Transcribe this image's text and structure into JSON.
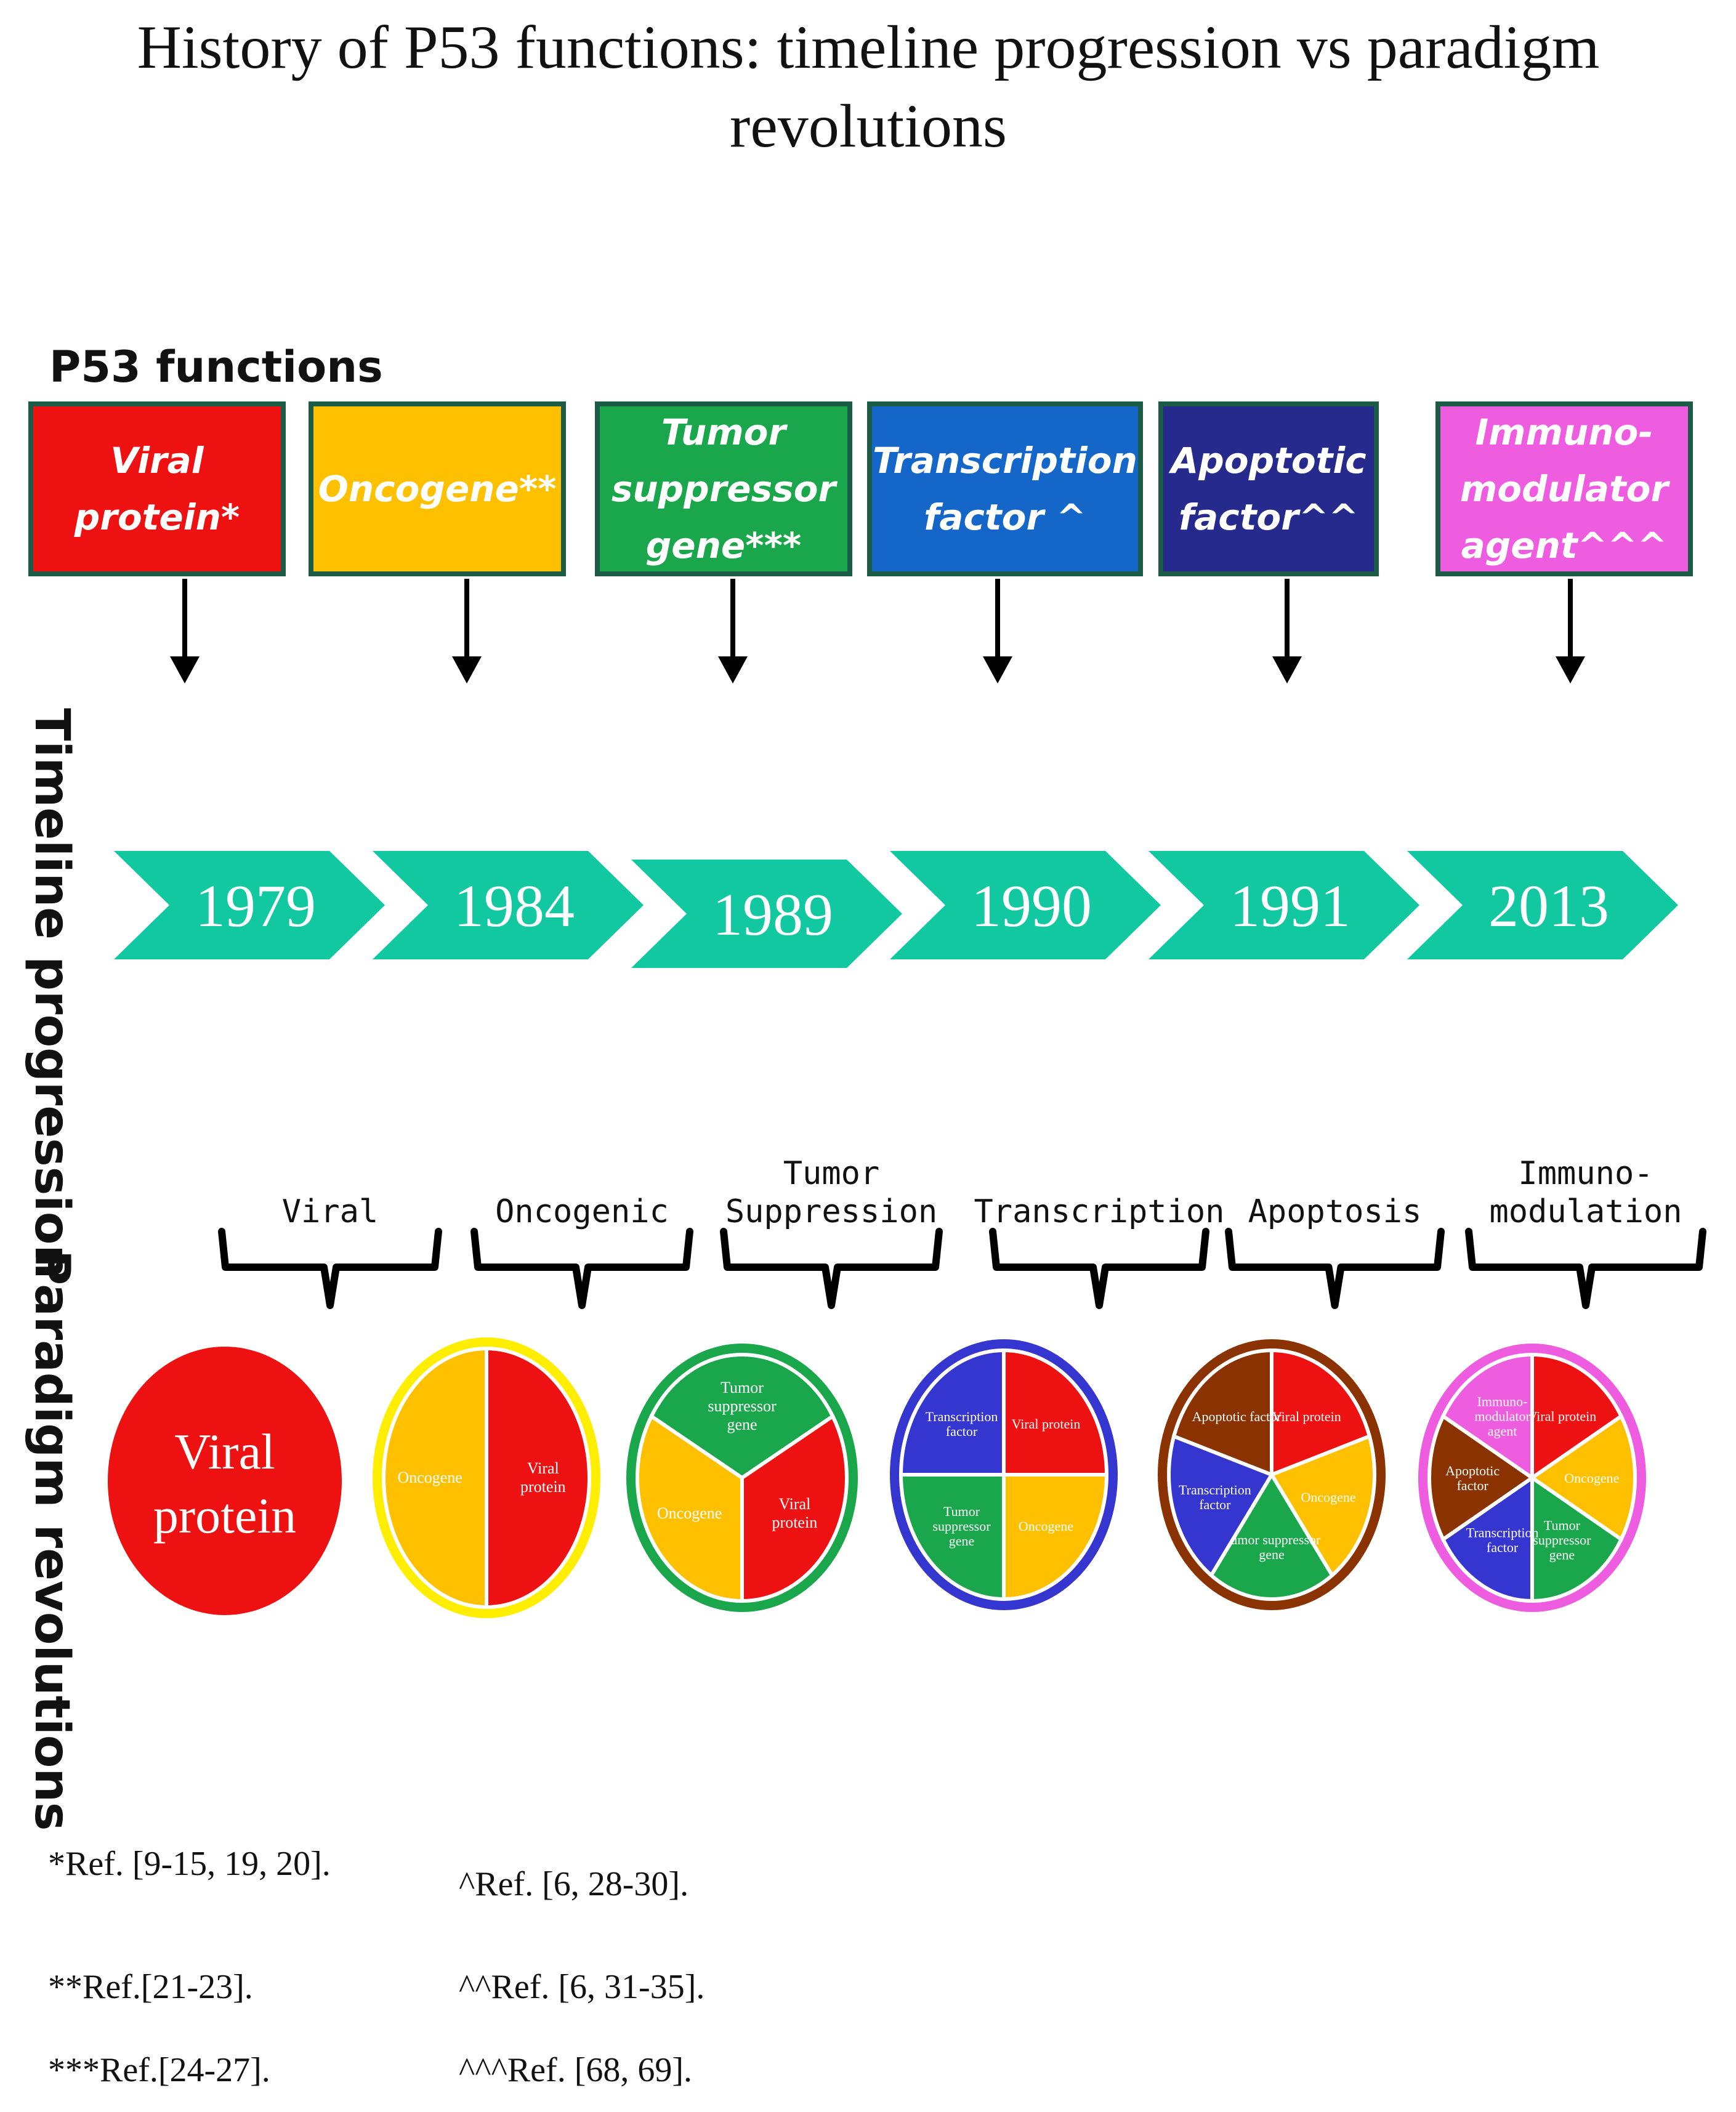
{
  "title": {
    "line1": "History of P53 functions: timeline progression vs paradigm",
    "line2": "revolutions"
  },
  "functions_label": "P53 functions",
  "functions": [
    {
      "lines": [
        "Viral",
        "protein*"
      ],
      "color": "#ee1111"
    },
    {
      "lines": [
        "Oncogene**"
      ],
      "color": "#ffc000"
    },
    {
      "lines": [
        "Tumor",
        "suppressor",
        "gene***"
      ],
      "color": "#1aa64a"
    },
    {
      "lines": [
        "Transcription",
        "factor ^"
      ],
      "color": "#1466c8"
    },
    {
      "lines": [
        "Apoptotic",
        "factor^^"
      ],
      "color": "#262a8c"
    },
    {
      "lines": [
        "Immuno-",
        "modulator",
        "agent^^^"
      ],
      "color": "#ee5ce0"
    }
  ],
  "timeline_label": "Timeline progression",
  "years": [
    "1979",
    "1984",
    "1989",
    "1990",
    "1991",
    "2013"
  ],
  "timeline_color": "#12c8a0",
  "paradigm_label": "Paradigm revolutions",
  "paradigms": [
    {
      "lines": [
        "Viral"
      ]
    },
    {
      "lines": [
        "Oncogenic"
      ]
    },
    {
      "lines": [
        "Tumor",
        "Suppression"
      ]
    },
    {
      "lines": [
        "Transcription"
      ]
    },
    {
      "lines": [
        "Apoptosis"
      ]
    },
    {
      "lines": [
        "Immuno-",
        "modulation"
      ]
    }
  ],
  "pies": [
    {
      "border": "#ee1111",
      "slices": [
        {
          "label": [
            "Viral",
            "protein"
          ],
          "color": "#ee1111",
          "value": 1
        }
      ]
    },
    {
      "border": "#ffee00",
      "slices": [
        {
          "label": [
            "Viral",
            "protein"
          ],
          "color": "#ee1111",
          "value": 1
        },
        {
          "label": [
            "Oncogene"
          ],
          "color": "#ffc000",
          "value": 1
        }
      ]
    },
    {
      "border": "#1aa64a",
      "slices": [
        {
          "label": [
            "Viral",
            "protein"
          ],
          "color": "#ee1111",
          "value": 1
        },
        {
          "label": [
            "Oncogene"
          ],
          "color": "#ffc000",
          "value": 1
        },
        {
          "label": [
            "Tumor",
            "suppressor",
            "gene"
          ],
          "color": "#1aa64a",
          "value": 1
        }
      ]
    },
    {
      "border": "#3535d0",
      "slices": [
        {
          "label": [
            "Viral protein"
          ],
          "color": "#ee1111",
          "value": 1
        },
        {
          "label": [
            "Oncogene"
          ],
          "color": "#ffc000",
          "value": 1
        },
        {
          "label": [
            "Tumor",
            "suppressor",
            "gene"
          ],
          "color": "#1aa64a",
          "value": 1
        },
        {
          "label": [
            "Transcription",
            "factor"
          ],
          "color": "#3535d0",
          "value": 1
        }
      ]
    },
    {
      "border": "#8b3300",
      "slices": [
        {
          "label": [
            "Viral protein"
          ],
          "color": "#ee1111",
          "value": 1
        },
        {
          "label": [
            "Oncogene"
          ],
          "color": "#ffc000",
          "value": 1
        },
        {
          "label": [
            "Tumor suppressor",
            "gene"
          ],
          "color": "#1aa64a",
          "value": 1
        },
        {
          "label": [
            "Transcription",
            "factor"
          ],
          "color": "#3535d0",
          "value": 1
        },
        {
          "label": [
            "Apoptotic factor"
          ],
          "color": "#8b3300",
          "value": 1
        }
      ]
    },
    {
      "border": "#ee5ce0",
      "slices": [
        {
          "label": [
            "Viral protein"
          ],
          "color": "#ee1111",
          "value": 1
        },
        {
          "label": [
            "Oncogene"
          ],
          "color": "#ffc000",
          "value": 1
        },
        {
          "label": [
            "Tumor",
            "suppressor",
            "gene"
          ],
          "color": "#1aa64a",
          "value": 1
        },
        {
          "label": [
            "Transcription",
            "factor"
          ],
          "color": "#3535d0",
          "value": 1
        },
        {
          "label": [
            "Apoptotic",
            "factor"
          ],
          "color": "#8b3300",
          "value": 1
        },
        {
          "label": [
            "Immuno-",
            "modulator",
            "agent"
          ],
          "color": "#ee5ce0",
          "value": 1
        }
      ]
    }
  ],
  "references": [
    "*Ref. [9-15, 19, 20].",
    "**Ref.[21-23].",
    "***Ref.[24-27].",
    "^Ref. [6, 28-30].",
    "^^Ref. [6, 31-35].",
    "^^^Ref. [68, 69]."
  ]
}
